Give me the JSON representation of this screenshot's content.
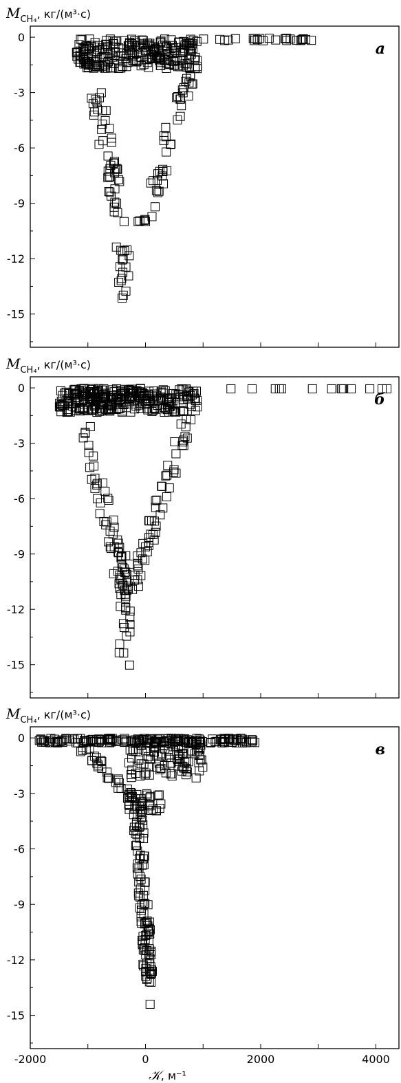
{
  "chart_data": [
    {
      "type": "scatter",
      "panel_letter": "а",
      "ylabel": {
        "symbol": "M",
        "subscript": "CH₄",
        "unit": ", кг/(м³·с)"
      },
      "ylim": [
        -16.8,
        0.6
      ],
      "xlim": [
        -2000,
        4400
      ],
      "yticks": [
        0,
        -3,
        -6,
        -9,
        -12,
        -15
      ],
      "ytick_labels": [
        "0",
        "-3",
        "-6",
        "-9",
        "-12",
        "-15"
      ],
      "xticks": [
        -2000,
        -1000,
        0,
        1000,
        2000,
        3000,
        4000
      ],
      "x": [],
      "y": []
    },
    {
      "type": "scatter",
      "panel_letter": "б",
      "ylabel": {
        "symbol": "M",
        "subscript": "CH₄",
        "unit": ", кг/(м³·с)"
      },
      "ylim": [
        -16.8,
        0.6
      ],
      "xlim": [
        -2000,
        4400
      ],
      "yticks": [
        0,
        -3,
        -6,
        -9,
        -12,
        -15
      ],
      "ytick_labels": [
        "0",
        "-3",
        "-6",
        "-9",
        "-12",
        "-15"
      ],
      "xticks": [
        -2000,
        -1000,
        0,
        1000,
        2000,
        3000,
        4000
      ],
      "x": [],
      "y": []
    },
    {
      "type": "scatter",
      "panel_letter": "в",
      "ylabel": {
        "symbol": "M",
        "subscript": "CH₄",
        "unit": ", кг/(м³·с)"
      },
      "ylim": [
        -16.8,
        0.6
      ],
      "xlim": [
        -2000,
        4400
      ],
      "yticks": [
        0,
        -3,
        -6,
        -9,
        -12,
        -15
      ],
      "ytick_labels": [
        "0",
        "-3",
        "-6",
        "-9",
        "-12",
        "-15"
      ],
      "xticks": [
        -2000,
        -1000,
        0,
        1000,
        2000,
        3000,
        4000
      ],
      "xtick_labels": [
        "-2000",
        "0",
        "2000",
        "4000"
      ],
      "xlabel": {
        "symbol": "𝒦",
        "unit": ", м⁻¹"
      },
      "x": [],
      "y": []
    }
  ]
}
